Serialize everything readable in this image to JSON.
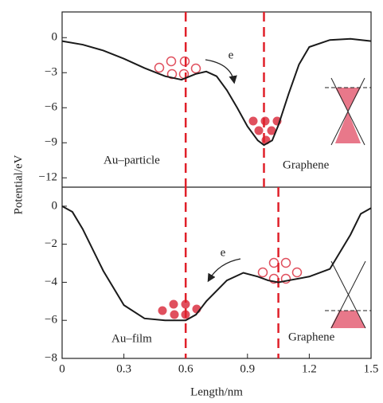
{
  "chart_data": [
    {
      "type": "line",
      "ylabel": "Potential/eV",
      "annotations": [
        "Au–particle",
        "Graphene",
        "e"
      ],
      "xlim": [
        0,
        1.5
      ],
      "ylim": [
        -12.8,
        2.2
      ],
      "yticks": [
        0,
        {
          "value": -3,
          "label": "−3"
        },
        {
          "value": -6,
          "label": "−6"
        },
        {
          "value": -9,
          "label": "−9"
        },
        {
          "value": -12,
          "label": "−12"
        }
      ],
      "vlines": [
        0.6,
        0.98
      ],
      "x": [
        0,
        0.1,
        0.2,
        0.3,
        0.4,
        0.5,
        0.58,
        0.65,
        0.7,
        0.75,
        0.8,
        0.85,
        0.9,
        0.95,
        0.98,
        1.02,
        1.05,
        1.1,
        1.15,
        1.2,
        1.3,
        1.4,
        1.5
      ],
      "series": [
        {
          "color": "#1a1a1a",
          "values": [
            -0.3,
            -0.6,
            -1.1,
            -1.8,
            -2.6,
            -3.3,
            -3.6,
            -3.1,
            -2.9,
            -3.3,
            -4.5,
            -6.0,
            -7.6,
            -8.8,
            -9.2,
            -8.8,
            -7.5,
            -4.8,
            -2.3,
            -0.8,
            -0.2,
            -0.1,
            -0.3
          ]
        }
      ]
    },
    {
      "type": "line",
      "xlabel": "Length/nm",
      "annotations": [
        "e",
        "Au–film",
        "Graphene"
      ],
      "xlim": [
        0,
        1.5
      ],
      "xticks": [
        0,
        0.3,
        0.6,
        0.9,
        1.2,
        1.5
      ],
      "ylim": [
        -8,
        1
      ],
      "yticks": [
        0,
        {
          "value": -2,
          "label": "−2"
        },
        {
          "value": -4,
          "label": "−4"
        },
        {
          "value": -6,
          "label": "−6"
        },
        {
          "value": -8,
          "label": "−8"
        }
      ],
      "vlines": [
        0.6,
        1.05
      ],
      "x": [
        0,
        0.05,
        0.1,
        0.2,
        0.3,
        0.4,
        0.5,
        0.6,
        0.65,
        0.7,
        0.8,
        0.88,
        0.95,
        1.0,
        1.05,
        1.1,
        1.2,
        1.3,
        1.4,
        1.45,
        1.5
      ],
      "series": [
        {
          "color": "#1a1a1a",
          "values": [
            0,
            -0.3,
            -1.2,
            -3.4,
            -5.2,
            -5.9,
            -6.0,
            -6.0,
            -5.7,
            -5.0,
            -3.9,
            -3.5,
            -3.7,
            -3.9,
            -4.0,
            -3.9,
            -3.7,
            -3.3,
            -1.5,
            -0.4,
            -0.1
          ]
        }
      ]
    }
  ]
}
